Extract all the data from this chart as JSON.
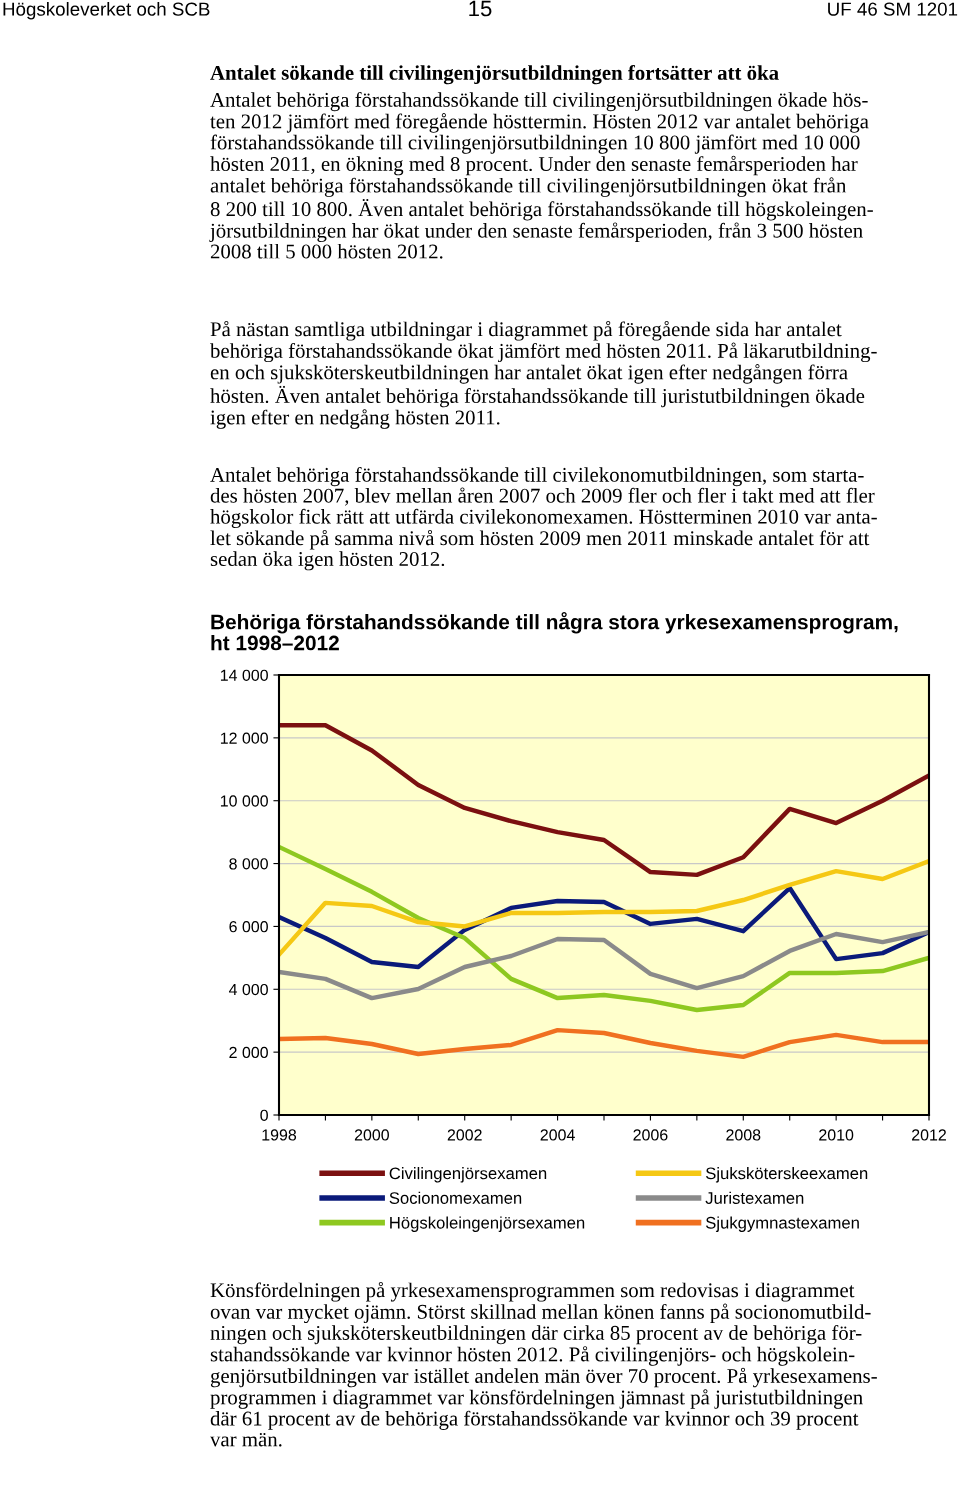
{
  "chart_data": {
    "type": "line",
    "title": "Behöriga förstahandssökande till några stora yrkesexamensprogram,\nht 1998–2012",
    "annotations": [
      "Högskoleverket och SCB",
      "15",
      "UF 46 SM 1201",
      "Antalet sökande till civilingenjörsutbildningen fortsätter att öka",
      "Antalet behöriga förstahandssökande till civilingenjörsutbildningen ökade hös-\nten 2012 jämfört med föregående hösttermin. Hösten 2012 var antalet behöriga\nförstahandssökande till civilingenjörsutbildningen 10 800 jämfört med 10 000\nhösten 2011, en ökning med 8 procent. Under den senaste femårsperioden har\nantalet behöriga förstahandssökande till civilingenjörsutbildningen ökat från\n8 200 till 10 800. Även antalet behöriga förstahandssökande till högskoleingen-\njörsutbildningen har ökat under den senaste femårsperioden, från 3 500 hösten\n2008 till 5 000 hösten 2012.",
      "På nästan samtliga utbildningar i diagrammet på föregående sida har antalet\nbehöriga förstahandssökande ökat jämfört med hösten 2011. På läkarutbildning-\nen och sjuksköterskeutbildningen har antalet ökat igen efter nedgången förra\nhösten. Även antalet behöriga förstahandssökande till juristutbildningen ökade\nigen efter en nedgång hösten 2011.",
      "Antalet behöriga förstahandssökande till civilekonomutbildningen, som starta-\ndes hösten 2007, blev mellan åren 2007 och 2009 fler och fler i takt med att fler\nhögskolor fick rätt att utfärda civilekonomexamen. Höstterminen 2010 var anta-\nlet sökande på samma nivå som hösten 2009 men 2011 minskade antalet för att\nsedan öka igen hösten 2012.",
      "Könsfördelningen på yrkesexamensprogrammen som redovisas i diagrammet\novan var mycket ojämn. Störst skillnad mellan könen fanns på socionomutbild-\nningen och sjuksköterskeutbildningen där cirka 85 procent av de behöriga för-\nstahandssökande var kvinnor hösten 2012. På civilingenjörs- och högskolein-\ngenjörsutbildningen var istället andelen män över 70 procent. På yrkesexamens-\nprogrammen i diagrammet var könsfördelningen jämnast på juristutbildningen\ndär 61 procent av de behöriga förstahandssökande var kvinnor och 39 procent\nvar män."
    ],
    "x": [
      1998,
      1999,
      2000,
      2001,
      2002,
      2003,
      2004,
      2005,
      2006,
      2007,
      2008,
      2009,
      2010,
      2011,
      2012
    ],
    "series": [
      {
        "name": "Civilingenjörsexamen",
        "color": "#7b1010",
        "values": [
          12400,
          12400,
          11600,
          10500,
          9770,
          9350,
          9000,
          8750,
          7730,
          7640,
          8200,
          9740,
          9290,
          10000,
          10800
        ]
      },
      {
        "name": "Socionomexamen",
        "color": "#0a1a7a",
        "values": [
          6300,
          5630,
          4870,
          4710,
          5890,
          6590,
          6810,
          6780,
          6080,
          6240,
          5850,
          7220,
          4960,
          5150,
          5820
        ]
      },
      {
        "name": "Högskoleingenjörsexamen",
        "color": "#8ec820",
        "values": [
          8530,
          7830,
          7100,
          6270,
          5630,
          4330,
          3720,
          3820,
          3630,
          3340,
          3500,
          4520,
          4520,
          4580,
          5000
        ]
      },
      {
        "name": "Sjuksköterskeexamen",
        "color": "#f5c814",
        "values": [
          5100,
          6750,
          6650,
          6140,
          6000,
          6430,
          6430,
          6460,
          6460,
          6490,
          6840,
          7320,
          7760,
          7510,
          8080
        ]
      },
      {
        "name": "Juristexamen",
        "color": "#8a8a8a",
        "values": [
          4550,
          4330,
          3720,
          4010,
          4710,
          5060,
          5600,
          5570,
          4490,
          4040,
          4420,
          5220,
          5760,
          5500,
          5820
        ]
      },
      {
        "name": "Sjukgymnastexamen",
        "color": "#f07020",
        "values": [
          2420,
          2450,
          2260,
          1940,
          2100,
          2230,
          2700,
          2610,
          2290,
          2040,
          1850,
          2320,
          2550,
          2320,
          2320
        ]
      }
    ],
    "xlim": [
      1998,
      2012
    ],
    "xticks": [
      1998,
      {
        "value": 1999,
        "label": null
      },
      2000,
      {
        "value": 2001,
        "label": null
      },
      2002,
      {
        "value": 2003,
        "label": null
      },
      2004,
      {
        "value": 2005,
        "label": null
      },
      2006,
      {
        "value": 2007,
        "label": null
      },
      2008,
      {
        "value": 2009,
        "label": null
      },
      2010,
      {
        "value": 2011,
        "label": null
      },
      2012
    ],
    "ylim": [
      0,
      14000
    ],
    "yticks": [
      0,
      {
        "value": 2000,
        "label": "2 000"
      },
      {
        "value": 4000,
        "label": "4 000"
      },
      {
        "value": 6000,
        "label": "6 000"
      },
      {
        "value": 8000,
        "label": "8 000"
      },
      {
        "value": 10000,
        "label": "10 000"
      },
      {
        "value": 12000,
        "label": "12 000"
      },
      {
        "value": 14000,
        "label": "14 000"
      }
    ],
    "grid": "y",
    "legend": "bottom"
  }
}
